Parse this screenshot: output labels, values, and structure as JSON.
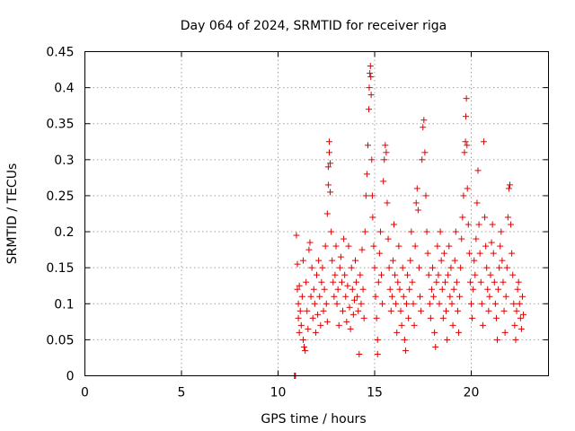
{
  "chart_data": {
    "type": "scatter",
    "title": "Day 064 of 2024, SRMTID for receiver riga",
    "xlabel": "GPS time / hours",
    "ylabel": "SRMTID / TECUs",
    "xlim": [
      0,
      24
    ],
    "ylim": [
      0,
      0.45
    ],
    "x_ticks": [
      "0",
      "5",
      "10",
      "15",
      "20"
    ],
    "x_tick_values": [
      0,
      5,
      10,
      15,
      20
    ],
    "y_ticks": [
      "0",
      "0.05",
      "0.1",
      "0.15",
      "0.2",
      "0.25",
      "0.3",
      "0.35",
      "0.4",
      "0.45"
    ],
    "y_tick_values": [
      0,
      0.05,
      0.1,
      0.15,
      0.2,
      0.25,
      0.3,
      0.35,
      0.4,
      0.45
    ],
    "grid": true,
    "marker": "+",
    "color": "#e00000",
    "series": [
      {
        "name": "SRMTID",
        "points": [
          [
            10.85,
            0.0
          ],
          [
            10.88,
            0.0
          ],
          [
            10.9,
            0.0
          ],
          [
            10.95,
            0.195
          ],
          [
            11.0,
            0.155
          ],
          [
            11.0,
            0.12
          ],
          [
            11.05,
            0.1
          ],
          [
            11.05,
            0.08
          ],
          [
            11.1,
            0.06
          ],
          [
            11.1,
            0.125
          ],
          [
            11.15,
            0.09
          ],
          [
            11.2,
            0.07
          ],
          [
            11.25,
            0.11
          ],
          [
            11.3,
            0.05
          ],
          [
            11.3,
            0.16
          ],
          [
            11.35,
            0.04
          ],
          [
            11.4,
            0.035
          ],
          [
            11.45,
            0.13
          ],
          [
            11.5,
            0.09
          ],
          [
            11.55,
            0.065
          ],
          [
            11.6,
            0.175
          ],
          [
            11.65,
            0.185
          ],
          [
            11.7,
            0.11
          ],
          [
            11.75,
            0.15
          ],
          [
            11.8,
            0.08
          ],
          [
            11.85,
            0.12
          ],
          [
            11.9,
            0.1
          ],
          [
            11.95,
            0.06
          ],
          [
            12.0,
            0.14
          ],
          [
            12.05,
            0.085
          ],
          [
            12.1,
            0.16
          ],
          [
            12.15,
            0.11
          ],
          [
            12.2,
            0.07
          ],
          [
            12.25,
            0.13
          ],
          [
            12.3,
            0.15
          ],
          [
            12.35,
            0.09
          ],
          [
            12.4,
            0.12
          ],
          [
            12.45,
            0.18
          ],
          [
            12.5,
            0.1
          ],
          [
            12.55,
            0.075
          ],
          [
            12.55,
            0.225
          ],
          [
            12.6,
            0.265
          ],
          [
            12.6,
            0.29
          ],
          [
            12.65,
            0.31
          ],
          [
            12.65,
            0.325
          ],
          [
            12.7,
            0.295
          ],
          [
            12.7,
            0.255
          ],
          [
            12.75,
            0.2
          ],
          [
            12.8,
            0.16
          ],
          [
            12.85,
            0.13
          ],
          [
            12.9,
            0.11
          ],
          [
            12.95,
            0.14
          ],
          [
            13.0,
            0.18
          ],
          [
            13.05,
            0.1
          ],
          [
            13.1,
            0.12
          ],
          [
            13.15,
            0.07
          ],
          [
            13.2,
            0.15
          ],
          [
            13.25,
            0.165
          ],
          [
            13.3,
            0.13
          ],
          [
            13.35,
            0.09
          ],
          [
            13.4,
            0.19
          ],
          [
            13.45,
            0.14
          ],
          [
            13.5,
            0.11
          ],
          [
            13.55,
            0.075
          ],
          [
            13.6,
            0.125
          ],
          [
            13.65,
            0.18
          ],
          [
            13.7,
            0.095
          ],
          [
            13.75,
            0.065
          ],
          [
            13.8,
            0.15
          ],
          [
            13.85,
            0.12
          ],
          [
            13.9,
            0.085
          ],
          [
            13.95,
            0.105
          ],
          [
            14.0,
            0.16
          ],
          [
            14.05,
            0.13
          ],
          [
            14.1,
            0.11
          ],
          [
            14.15,
            0.09
          ],
          [
            14.2,
            0.03
          ],
          [
            14.25,
            0.14
          ],
          [
            14.3,
            0.1
          ],
          [
            14.35,
            0.175
          ],
          [
            14.4,
            0.12
          ],
          [
            14.45,
            0.08
          ],
          [
            14.5,
            0.2
          ],
          [
            14.55,
            0.25
          ],
          [
            14.6,
            0.28
          ],
          [
            14.65,
            0.32
          ],
          [
            14.7,
            0.37
          ],
          [
            14.72,
            0.4
          ],
          [
            14.75,
            0.42
          ],
          [
            14.78,
            0.43
          ],
          [
            14.8,
            0.415
          ],
          [
            14.82,
            0.39
          ],
          [
            14.85,
            0.3
          ],
          [
            14.88,
            0.25
          ],
          [
            14.9,
            0.22
          ],
          [
            14.95,
            0.18
          ],
          [
            15.0,
            0.15
          ],
          [
            15.05,
            0.11
          ],
          [
            15.1,
            0.08
          ],
          [
            15.15,
            0.05
          ],
          [
            15.15,
            0.03
          ],
          [
            15.2,
            0.13
          ],
          [
            15.25,
            0.17
          ],
          [
            15.3,
            0.2
          ],
          [
            15.35,
            0.14
          ],
          [
            15.4,
            0.1
          ],
          [
            15.45,
            0.27
          ],
          [
            15.5,
            0.3
          ],
          [
            15.55,
            0.32
          ],
          [
            15.6,
            0.31
          ],
          [
            15.65,
            0.24
          ],
          [
            15.7,
            0.19
          ],
          [
            15.75,
            0.15
          ],
          [
            15.8,
            0.12
          ],
          [
            15.85,
            0.09
          ],
          [
            15.9,
            0.11
          ],
          [
            15.95,
            0.16
          ],
          [
            16.0,
            0.21
          ],
          [
            16.05,
            0.14
          ],
          [
            16.1,
            0.1
          ],
          [
            16.15,
            0.06
          ],
          [
            16.2,
            0.13
          ],
          [
            16.25,
            0.18
          ],
          [
            16.3,
            0.12
          ],
          [
            16.35,
            0.09
          ],
          [
            16.4,
            0.07
          ],
          [
            16.45,
            0.15
          ],
          [
            16.5,
            0.11
          ],
          [
            16.55,
            0.05
          ],
          [
            16.6,
            0.035
          ],
          [
            16.65,
            0.1
          ],
          [
            16.7,
            0.14
          ],
          [
            16.75,
            0.08
          ],
          [
            16.8,
            0.12
          ],
          [
            16.85,
            0.16
          ],
          [
            16.9,
            0.2
          ],
          [
            16.95,
            0.13
          ],
          [
            17.0,
            0.1
          ],
          [
            17.05,
            0.07
          ],
          [
            17.1,
            0.18
          ],
          [
            17.15,
            0.24
          ],
          [
            17.2,
            0.26
          ],
          [
            17.25,
            0.23
          ],
          [
            17.3,
            0.15
          ],
          [
            17.35,
            0.11
          ],
          [
            17.4,
            0.09
          ],
          [
            17.45,
            0.3
          ],
          [
            17.5,
            0.345
          ],
          [
            17.55,
            0.355
          ],
          [
            17.6,
            0.31
          ],
          [
            17.65,
            0.25
          ],
          [
            17.7,
            0.2
          ],
          [
            17.75,
            0.17
          ],
          [
            17.8,
            0.14
          ],
          [
            17.85,
            0.1
          ],
          [
            17.9,
            0.08
          ],
          [
            17.95,
            0.12
          ],
          [
            18.0,
            0.15
          ],
          [
            18.05,
            0.11
          ],
          [
            18.1,
            0.06
          ],
          [
            18.15,
            0.04
          ],
          [
            18.2,
            0.13
          ],
          [
            18.25,
            0.18
          ],
          [
            18.3,
            0.14
          ],
          [
            18.35,
            0.1
          ],
          [
            18.4,
            0.2
          ],
          [
            18.45,
            0.16
          ],
          [
            18.5,
            0.12
          ],
          [
            18.55,
            0.08
          ],
          [
            18.6,
            0.17
          ],
          [
            18.65,
            0.13
          ],
          [
            18.7,
            0.09
          ],
          [
            18.75,
            0.05
          ],
          [
            18.8,
            0.14
          ],
          [
            18.85,
            0.18
          ],
          [
            18.9,
            0.11
          ],
          [
            18.95,
            0.15
          ],
          [
            19.0,
            0.1
          ],
          [
            19.05,
            0.07
          ],
          [
            19.1,
            0.12
          ],
          [
            19.15,
            0.16
          ],
          [
            19.2,
            0.2
          ],
          [
            19.25,
            0.13
          ],
          [
            19.3,
            0.09
          ],
          [
            19.35,
            0.06
          ],
          [
            19.4,
            0.11
          ],
          [
            19.45,
            0.15
          ],
          [
            19.5,
            0.19
          ],
          [
            19.55,
            0.22
          ],
          [
            19.6,
            0.25
          ],
          [
            19.65,
            0.31
          ],
          [
            19.7,
            0.325
          ],
          [
            19.72,
            0.36
          ],
          [
            19.75,
            0.385
          ],
          [
            19.78,
            0.32
          ],
          [
            19.8,
            0.26
          ],
          [
            19.85,
            0.21
          ],
          [
            19.9,
            0.17
          ],
          [
            19.95,
            0.13
          ],
          [
            20.0,
            0.1
          ],
          [
            20.05,
            0.08
          ],
          [
            20.1,
            0.12
          ],
          [
            20.15,
            0.16
          ],
          [
            20.2,
            0.14
          ],
          [
            20.25,
            0.19
          ],
          [
            20.3,
            0.24
          ],
          [
            20.35,
            0.285
          ],
          [
            20.4,
            0.21
          ],
          [
            20.45,
            0.17
          ],
          [
            20.5,
            0.13
          ],
          [
            20.55,
            0.1
          ],
          [
            20.6,
            0.07
          ],
          [
            20.65,
            0.325
          ],
          [
            20.7,
            0.22
          ],
          [
            20.75,
            0.18
          ],
          [
            20.8,
            0.15
          ],
          [
            20.85,
            0.12
          ],
          [
            20.9,
            0.09
          ],
          [
            20.95,
            0.11
          ],
          [
            21.0,
            0.14
          ],
          [
            21.05,
            0.185
          ],
          [
            21.1,
            0.21
          ],
          [
            21.15,
            0.17
          ],
          [
            21.2,
            0.13
          ],
          [
            21.25,
            0.1
          ],
          [
            21.3,
            0.08
          ],
          [
            21.35,
            0.05
          ],
          [
            21.4,
            0.12
          ],
          [
            21.45,
            0.15
          ],
          [
            21.5,
            0.18
          ],
          [
            21.55,
            0.2
          ],
          [
            21.6,
            0.16
          ],
          [
            21.65,
            0.13
          ],
          [
            21.7,
            0.09
          ],
          [
            21.75,
            0.06
          ],
          [
            21.8,
            0.11
          ],
          [
            21.85,
            0.15
          ],
          [
            21.9,
            0.22
          ],
          [
            21.95,
            0.26
          ],
          [
            22.0,
            0.265
          ],
          [
            22.05,
            0.21
          ],
          [
            22.1,
            0.17
          ],
          [
            22.15,
            0.14
          ],
          [
            22.2,
            0.1
          ],
          [
            22.25,
            0.07
          ],
          [
            22.3,
            0.05
          ],
          [
            22.35,
            0.09
          ],
          [
            22.4,
            0.12
          ],
          [
            22.45,
            0.13
          ],
          [
            22.5,
            0.1
          ],
          [
            22.55,
            0.08
          ],
          [
            22.6,
            0.065
          ],
          [
            22.65,
            0.11
          ],
          [
            22.7,
            0.085
          ]
        ]
      }
    ]
  }
}
